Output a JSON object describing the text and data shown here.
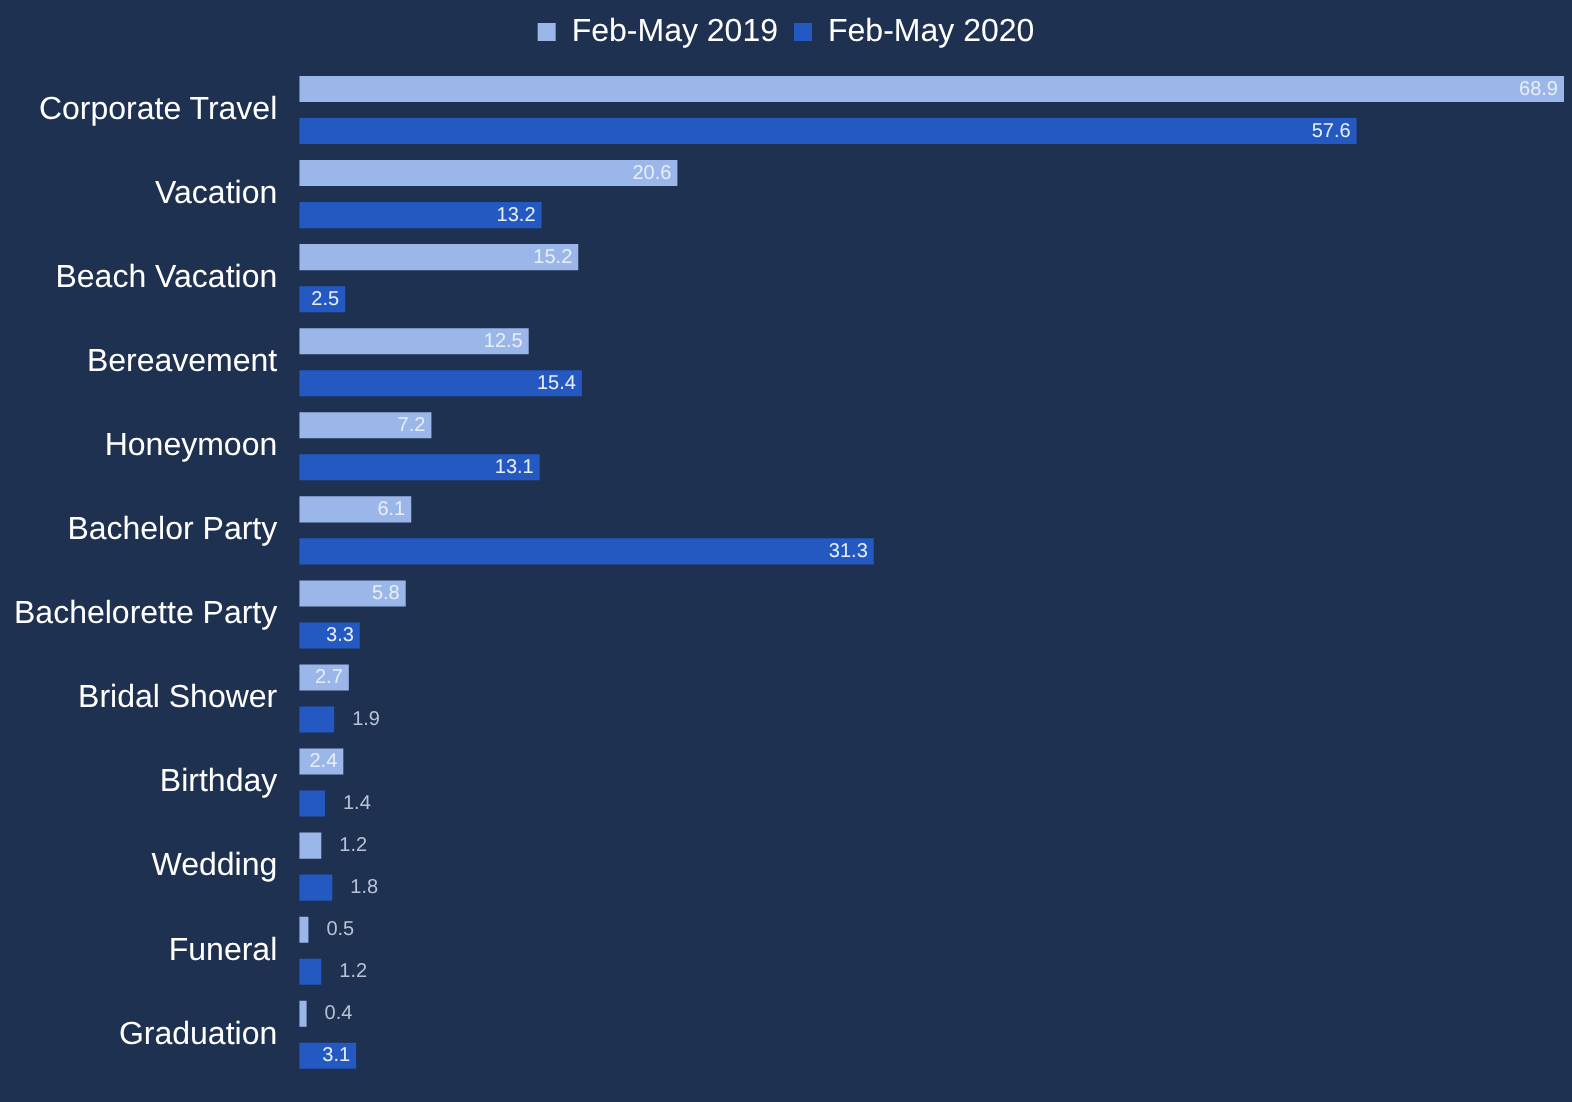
{
  "chart_data": {
    "type": "bar",
    "orientation": "horizontal",
    "data_labels": true,
    "legend": "top",
    "categories": [
      "Corporate Travel",
      "Vacation",
      "Beach Vacation",
      "Bereavement",
      "Honeymoon",
      "Bachelor Party",
      "Bachelorette Party",
      "Bridal Shower",
      "Birthday",
      "Wedding",
      "Funeral",
      "Graduation"
    ],
    "series": [
      {
        "name": "Feb-May 2019",
        "color": "#9bb6e8",
        "values": [
          68.9,
          20.6,
          15.2,
          12.5,
          7.2,
          6.1,
          5.8,
          2.7,
          2.4,
          1.2,
          0.5,
          0.4
        ]
      },
      {
        "name": "Feb-May 2020",
        "color": "#2359c0",
        "values": [
          57.6,
          13.2,
          2.5,
          15.4,
          13.1,
          31.3,
          3.3,
          1.9,
          1.4,
          1.8,
          1.2,
          3.1
        ]
      }
    ]
  }
}
